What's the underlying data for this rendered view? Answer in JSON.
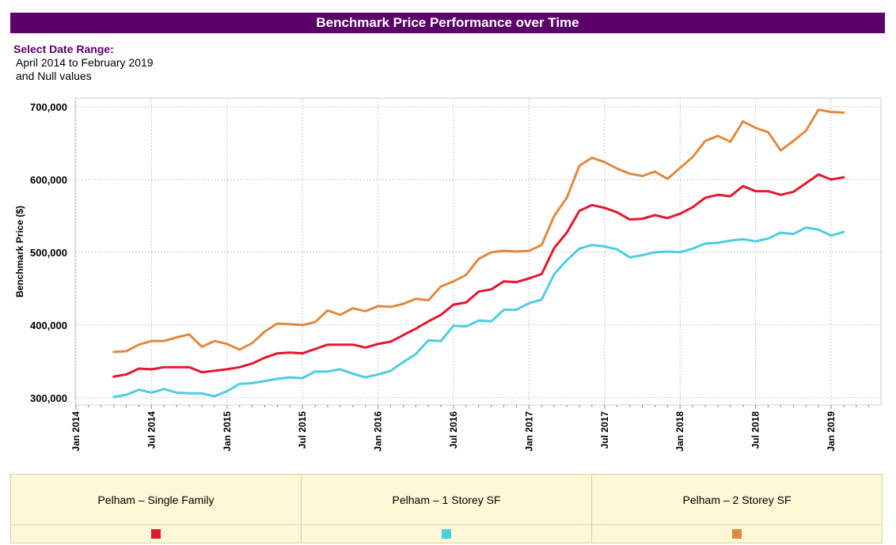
{
  "header": {
    "title": "Benchmark Price Performance over Time",
    "range_label": "Select Date Range:",
    "range_value": "April 2014 to February 2019",
    "range_null": "and Null values"
  },
  "chart_data": {
    "type": "line",
    "title": "Benchmark Price Performance over Time",
    "ylabel": "Benchmark Price ($)",
    "xlabel": "",
    "ylim": [
      290000,
      712000
    ],
    "yticks": [
      300000,
      400000,
      500000,
      600000,
      700000
    ],
    "ytick_labels": [
      "300,000",
      "400,000",
      "500,000",
      "600,000",
      "700,000"
    ],
    "xtick_labels": [
      "Jan 2014",
      "Jul 2014",
      "Jan 2015",
      "Jul 2015",
      "Jan 2016",
      "Jul 2016",
      "Jan 2017",
      "Jul 2017",
      "Jan 2018",
      "Jul 2018",
      "Jan 2019"
    ],
    "x_start": "Apr 2014",
    "x_end": "Feb 2019",
    "grid": true,
    "legend_position": "bottom",
    "series": [
      {
        "name": "Pelham – Single Family",
        "color": "#e3182d",
        "values": [
          329000,
          332000,
          340000,
          339000,
          342000,
          342000,
          342000,
          335000,
          337000,
          339000,
          342000,
          347000,
          355000,
          361000,
          362000,
          361000,
          367000,
          373000,
          373000,
          373000,
          369000,
          374000,
          377000,
          386000,
          395000,
          405000,
          414000,
          428000,
          431000,
          446000,
          449000,
          460000,
          459000,
          464000,
          470000,
          506000,
          527000,
          557000,
          565000,
          561000,
          555000,
          545000,
          546000,
          551000,
          547000,
          553000,
          562000,
          575000,
          579000,
          577000,
          591000,
          584000,
          584000,
          579000,
          583000,
          595000,
          607000,
          600000,
          603000
        ]
      },
      {
        "name": "Pelham – 1 Storey SF",
        "color": "#4fcde0",
        "values": [
          301000,
          304000,
          311000,
          307000,
          312000,
          307000,
          306000,
          306000,
          302000,
          309000,
          319000,
          320000,
          323000,
          326000,
          328000,
          327000,
          336000,
          336000,
          339000,
          333000,
          328000,
          332000,
          337000,
          349000,
          360000,
          379000,
          378000,
          399000,
          398000,
          406000,
          405000,
          421000,
          421000,
          430000,
          435000,
          470000,
          489000,
          505000,
          510000,
          508000,
          504000,
          493000,
          496000,
          500000,
          501000,
          500000,
          505000,
          512000,
          513000,
          516000,
          518000,
          515000,
          519000,
          527000,
          525000,
          534000,
          531000,
          523000,
          528000
        ]
      },
      {
        "name": "Pelham – 2 Storey SF",
        "color": "#e08a3e",
        "values": [
          363000,
          364000,
          373000,
          378000,
          378000,
          383000,
          387000,
          370000,
          378000,
          374000,
          366000,
          375000,
          391000,
          402000,
          401000,
          400000,
          404000,
          420000,
          414000,
          423000,
          419000,
          426000,
          425000,
          429000,
          436000,
          434000,
          453000,
          460000,
          469000,
          491000,
          500000,
          502000,
          501000,
          502000,
          510000,
          550000,
          575000,
          619000,
          630000,
          624000,
          615000,
          608000,
          605000,
          611000,
          601000,
          616000,
          631000,
          653000,
          660000,
          652000,
          680000,
          671000,
          665000,
          640000,
          653000,
          667000,
          696000,
          693000,
          692000
        ]
      }
    ]
  },
  "legend": {
    "items": [
      {
        "label": "Pelham – Single Family",
        "color": "#e3182d"
      },
      {
        "label": "Pelham – 1 Storey SF",
        "color": "#4fcde0"
      },
      {
        "label": "Pelham – 2 Storey SF",
        "color": "#e08a3e"
      }
    ]
  }
}
